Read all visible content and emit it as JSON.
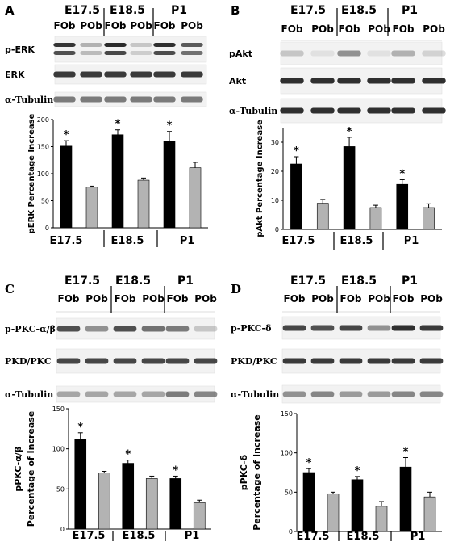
{
  "figure": {
    "panels": [
      {
        "letter": "A",
        "groups": [
          "E17.5",
          "E18.5",
          "P1"
        ],
        "lanes": [
          "FOb",
          "POb",
          "FOb",
          "POb",
          "FOb",
          "POb"
        ],
        "blots": [
          "p-ERK",
          "ERK",
          "α-Tubulin"
        ],
        "blot_intensity": [
          [
            0.88,
            0.3,
            0.92,
            0.2,
            0.9,
            0.7
          ],
          [
            0.85,
            0.85,
            0.85,
            0.85,
            0.85,
            0.85
          ],
          [
            0.55,
            0.55,
            0.55,
            0.55,
            0.55,
            0.55
          ]
        ],
        "ylabel": [
          "pERK Percentage Increase"
        ],
        "ylim": [
          0,
          200
        ],
        "yticks": [
          0,
          50,
          100,
          150,
          200
        ],
        "values": [
          151,
          75,
          172,
          88,
          160,
          111
        ],
        "errors": [
          10,
          2,
          9,
          4,
          18,
          10
        ],
        "significant": [
          true,
          false,
          true,
          false,
          true,
          false
        ],
        "star": "*"
      },
      {
        "letter": "B",
        "groups": [
          "E17.5",
          "E18.5",
          "P1"
        ],
        "lanes": [
          "FOb",
          "POb",
          "FOb",
          "POb",
          "FOb",
          "POb"
        ],
        "blots": [
          "pAkt",
          "Akt",
          "α-Tubulin"
        ],
        "blot_intensity": [
          [
            0.2,
            0.08,
            0.45,
            0.08,
            0.3,
            0.15
          ],
          [
            0.9,
            0.9,
            0.9,
            0.9,
            0.9,
            0.9
          ],
          [
            0.9,
            0.9,
            0.9,
            0.9,
            0.9,
            0.9
          ]
        ],
        "ylabel": [
          "pAkt Percentage Increase"
        ],
        "ylim": [
          0,
          35
        ],
        "yticks": [
          0,
          10,
          20,
          30
        ],
        "values": [
          22.5,
          9,
          28.5,
          7.5,
          15.5,
          7.5
        ],
        "errors": [
          2.5,
          1.3,
          3.2,
          0.8,
          1.6,
          1.3
        ],
        "significant": [
          true,
          false,
          true,
          false,
          true,
          false
        ],
        "star": "*"
      },
      {
        "letter": "C",
        "groups": [
          "E17.5",
          "E18.5",
          "P1"
        ],
        "lanes": [
          "FOb",
          "POb",
          "FOb",
          "POb",
          "FOb",
          "POb"
        ],
        "blots": [
          "p-PKC-α/β",
          "PKD/PKC",
          "α-Tubulin"
        ],
        "blot_intensity": [
          [
            0.75,
            0.45,
            0.75,
            0.6,
            0.55,
            0.2
          ],
          [
            0.8,
            0.8,
            0.8,
            0.8,
            0.8,
            0.8
          ],
          [
            0.35,
            0.35,
            0.35,
            0.35,
            0.55,
            0.5
          ]
        ],
        "ylabel": [
          "pPKC-α/β",
          "Percentage of Increase"
        ],
        "ylim": [
          0,
          150
        ],
        "yticks": [
          0,
          50,
          100,
          150
        ],
        "values": [
          112,
          70,
          82,
          63,
          63,
          33
        ],
        "errors": [
          8,
          2,
          4,
          3,
          3,
          3
        ],
        "significant": [
          true,
          false,
          true,
          false,
          true,
          false
        ],
        "star": "*"
      },
      {
        "letter": "D",
        "groups": [
          "E17.5",
          "E18.5",
          "P1"
        ],
        "lanes": [
          "FOb",
          "POb",
          "FOb",
          "POb",
          "FOb",
          "POb"
        ],
        "blots": [
          "p-PKC-δ",
          "PKD/PKC",
          "α-Tubulin"
        ],
        "blot_intensity": [
          [
            0.8,
            0.75,
            0.8,
            0.45,
            0.9,
            0.85
          ],
          [
            0.85,
            0.85,
            0.85,
            0.85,
            0.85,
            0.85
          ],
          [
            0.45,
            0.5,
            0.4,
            0.4,
            0.5,
            0.5
          ]
        ],
        "ylabel": [
          "pPKC-δ",
          "Percentage of Increase"
        ],
        "ylim": [
          0,
          150
        ],
        "yticks": [
          0,
          50,
          100,
          150
        ],
        "values": [
          75,
          48,
          66,
          32,
          82,
          44
        ],
        "errors": [
          5,
          2,
          4,
          6,
          12,
          6
        ],
        "significant": [
          true,
          false,
          true,
          false,
          true,
          false
        ],
        "star": "*"
      }
    ]
  },
  "chart_data": [
    {
      "type": "bar",
      "title": "",
      "categories": [
        "E17.5",
        "E18.5",
        "P1"
      ],
      "ylabel": "pERK Percentage Increase",
      "ylim": [
        0,
        200
      ],
      "series": [
        {
          "values": [
            151,
            172,
            160
          ]
        },
        {
          "values": [
            75,
            88,
            111
          ]
        }
      ]
    },
    {
      "type": "bar",
      "title": "",
      "categories": [
        "E17.5",
        "E18.5",
        "P1"
      ],
      "ylabel": "pAkt Percentage Increase",
      "ylim": [
        0,
        35
      ],
      "series": [
        {
          "values": [
            22.5,
            28.5,
            15.5
          ]
        },
        {
          "values": [
            9,
            7.5,
            7.5
          ]
        }
      ]
    },
    {
      "type": "bar",
      "title": "",
      "categories": [
        "E17.5",
        "E18.5",
        "P1"
      ],
      "ylabel": "pPKC-α/β Percentage of Increase",
      "ylim": [
        0,
        150
      ],
      "series": [
        {
          "values": [
            112,
            82,
            63
          ]
        },
        {
          "values": [
            70,
            63,
            33
          ]
        }
      ]
    },
    {
      "type": "bar",
      "title": "",
      "categories": [
        "E17.5",
        "E18.5",
        "P1"
      ],
      "ylabel": "pPKC-δ Percentage of Increase",
      "ylim": [
        0,
        150
      ],
      "series": [
        {
          "values": [
            75,
            66,
            82
          ]
        },
        {
          "values": [
            48,
            32,
            44
          ]
        }
      ]
    }
  ],
  "colors": {
    "fob_bar": "#000000",
    "pob_bar": "#b3b3b3",
    "blot_bg": "#f2f2f2",
    "band": "#1a1a1a"
  }
}
